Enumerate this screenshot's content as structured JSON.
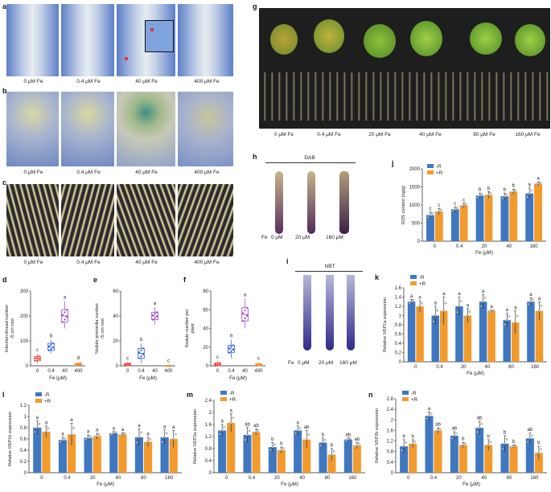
{
  "panels": {
    "a": {
      "label": "a",
      "captions": [
        "0 μM Fe",
        "0.4 μM Fe",
        "40 μM Fe",
        "400 μM Fe"
      ]
    },
    "b": {
      "label": "b",
      "captions": [
        "0 μM Fe",
        "0.4 μM Fe",
        "40 μM Fe",
        "400 μM Fe"
      ]
    },
    "c": {
      "label": "c",
      "captions": [
        "0 μM Fe",
        "0.4 μM Fe",
        "40 μM Fe",
        "400 μM Fe"
      ]
    },
    "g": {
      "label": "g",
      "captions": [
        "0 μM Fe",
        "0.4 μM Fe",
        "20 μM Fe",
        "40 μM Fe",
        "80 μM Fe",
        "160 μM Fe"
      ]
    },
    "h": {
      "label": "h",
      "title": "DAB",
      "fe": "Fe",
      "captions": [
        "0 μM",
        "20 μM",
        "160 μM"
      ]
    },
    "i": {
      "label": "i",
      "title": "NBT",
      "fe": "Fe",
      "captions": [
        "0 μM",
        "20 μM",
        "160 μM"
      ]
    },
    "d": {
      "label": "d"
    },
    "e": {
      "label": "e"
    },
    "f": {
      "label": "f"
    },
    "j": {
      "label": "j"
    },
    "k": {
      "label": "k"
    },
    "l": {
      "label": "l"
    },
    "m": {
      "label": "m"
    },
    "n": {
      "label": "n"
    }
  },
  "colors": {
    "minus_r": "#3f78c1",
    "plus_r": "#f39a2c",
    "box_d": "#9b3fc9",
    "box_d0": "#e8463c",
    "box_d1": "#2a5bd7",
    "box_d3": "#f08a2a"
  },
  "chart_data": [
    {
      "id": "d",
      "type": "box",
      "categories": [
        "0",
        "0.4",
        "40",
        "400"
      ],
      "xlabel": "Fe (μM)",
      "ylabel": "Infection-thread number /5 cm root",
      "ylim": [
        0,
        300
      ],
      "yticks": [
        0,
        100,
        200,
        300
      ],
      "medians": [
        30,
        75,
        200,
        5
      ],
      "q1": [
        20,
        62,
        175,
        2
      ],
      "q3": [
        38,
        90,
        225,
        10
      ],
      "min": [
        10,
        50,
        150,
        0
      ],
      "max": [
        48,
        105,
        260,
        16
      ],
      "letters": [
        "c",
        "b",
        "a",
        "d"
      ]
    },
    {
      "id": "e",
      "type": "box",
      "categories": [
        "0",
        "0.4",
        "40",
        "400"
      ],
      "xlabel": "Fe (μM)",
      "ylabel": "Nodule primordia number /5 cm root",
      "ylim": [
        0,
        60
      ],
      "yticks": [
        0,
        20,
        40,
        60
      ],
      "medians": [
        1,
        10,
        40,
        0
      ],
      "q1": [
        0,
        6,
        37,
        0
      ],
      "q3": [
        2,
        14,
        43,
        0
      ],
      "min": [
        0,
        2,
        33,
        0
      ],
      "max": [
        3,
        18,
        47,
        1
      ],
      "letters": [
        "c",
        "b",
        "a",
        "c"
      ]
    },
    {
      "id": "f",
      "type": "box",
      "categories": [
        "0",
        "0.4",
        "40",
        "400"
      ],
      "xlabel": "Fe (μM)",
      "ylabel": "Nodule number per plant",
      "ylim": [
        0,
        80
      ],
      "yticks": [
        0,
        20,
        40,
        60,
        80
      ],
      "medians": [
        1,
        18,
        55,
        1
      ],
      "q1": [
        0,
        14,
        48,
        0
      ],
      "q3": [
        3,
        22,
        62,
        2
      ],
      "min": [
        0,
        8,
        40,
        0
      ],
      "max": [
        5,
        28,
        72,
        4
      ],
      "letters": [
        "c",
        "b",
        "a",
        "c"
      ]
    },
    {
      "id": "j",
      "type": "bar",
      "categories": [
        "0",
        "0.4",
        "20",
        "40",
        "160"
      ],
      "xlabel": "Fe (μM)",
      "ylabel": "ROS content (ng/g)",
      "ylim": [
        0,
        2000
      ],
      "yticks": [
        0,
        500,
        1000,
        1500,
        2000
      ],
      "series": [
        {
          "name": "-R",
          "values": [
            720,
            880,
            1260,
            1240,
            1320
          ],
          "err": [
            90,
            70,
            70,
            90,
            150
          ]
        },
        {
          "name": "+R",
          "values": [
            820,
            990,
            1280,
            1370,
            1590
          ],
          "err": [
            80,
            60,
            90,
            70,
            50
          ]
        }
      ],
      "letters": [
        [
          "c",
          "c"
        ],
        [
          "c",
          "c"
        ],
        [
          "b",
          "b"
        ],
        [
          "b",
          "b"
        ],
        [
          "a",
          "a"
        ]
      ]
    },
    {
      "id": "k",
      "type": "bar",
      "categories": [
        "0",
        "0.4",
        "20",
        "40",
        "80",
        "160"
      ],
      "xlabel": "Fe (μM)",
      "ylabel": "Relative NSP1a expression",
      "ylim": [
        0,
        1.6
      ],
      "yticks": [
        0,
        0.2,
        0.4,
        0.6,
        0.8,
        1.0,
        1.2,
        1.4,
        1.6
      ],
      "series": [
        {
          "name": "-R",
          "values": [
            1.3,
            1.0,
            1.2,
            1.3,
            0.9,
            1.3
          ],
          "err": [
            0.05,
            0.2,
            0.2,
            0.15,
            0.15,
            0.08
          ]
        },
        {
          "name": "+R",
          "values": [
            1.2,
            1.1,
            1.0,
            1.1,
            0.85,
            1.1
          ],
          "err": [
            0.12,
            0.3,
            0.15,
            0.02,
            0.25,
            0.2
          ]
        }
      ],
      "letters": [
        [
          "a",
          "a"
        ],
        [
          "a",
          "a"
        ],
        [
          "a",
          "a"
        ],
        [
          "a",
          "a"
        ],
        [
          "a",
          "a"
        ],
        [
          "a",
          "a"
        ]
      ]
    },
    {
      "id": "l",
      "type": "bar",
      "categories": [
        "0",
        "0.4",
        "20",
        "40",
        "80",
        "160"
      ],
      "xlabel": "Fe (μM)",
      "ylabel": "Relative NSP1b expression",
      "ylim": [
        0,
        1.2
      ],
      "yticks": [
        0,
        0.2,
        0.4,
        0.6,
        0.8,
        1.0,
        1.2
      ],
      "series": [
        {
          "name": "-R",
          "values": [
            0.8,
            0.58,
            0.62,
            0.7,
            0.63,
            0.63
          ],
          "err": [
            0.12,
            0.05,
            0.05,
            0.03,
            0.15,
            0.13
          ]
        },
        {
          "name": "+R",
          "values": [
            0.73,
            0.68,
            0.65,
            0.68,
            0.55,
            0.6
          ],
          "err": [
            0.1,
            0.2,
            0.05,
            0.03,
            0.08,
            0.15
          ]
        }
      ],
      "letters": [
        [
          "a",
          "a"
        ],
        [
          "a",
          "a"
        ],
        [
          "a",
          "a"
        ],
        [
          "a",
          "a"
        ],
        [
          "a",
          "a"
        ],
        [
          "a",
          "a"
        ]
      ]
    },
    {
      "id": "m",
      "type": "bar",
      "categories": [
        "0",
        "0.4",
        "20",
        "40",
        "80",
        "160"
      ],
      "xlabel": "Fe (μM)",
      "ylabel": "Relative NSP2a expression",
      "ylim": [
        0,
        2.4
      ],
      "yticks": [
        0,
        0.4,
        0.8,
        1.2,
        1.6,
        2.0,
        2.4
      ],
      "series": [
        {
          "name": "-R",
          "values": [
            1.4,
            1.25,
            0.85,
            1.4,
            1.0,
            1.1
          ],
          "err": [
            0.2,
            0.25,
            0.15,
            0.15,
            0.15,
            0.05
          ]
        },
        {
          "name": "+R",
          "values": [
            1.65,
            1.35,
            0.75,
            1.1,
            0.6,
            0.9
          ],
          "err": [
            0.3,
            0.1,
            0.1,
            0.3,
            0.2,
            0.1
          ]
        }
      ],
      "letters": [
        [
          "a",
          "a"
        ],
        [
          "ab",
          "ab"
        ],
        [
          "b",
          "b"
        ],
        [
          "a",
          "ab"
        ],
        [
          "b",
          "b"
        ],
        [
          "ab",
          "ab"
        ]
      ]
    },
    {
      "id": "n",
      "type": "bar",
      "categories": [
        "0",
        "0.4",
        "20",
        "40",
        "80",
        "160"
      ],
      "xlabel": "Fe (μM)",
      "ylabel": "Relative NSP2b expression",
      "ylim": [
        0,
        2.8
      ],
      "yticks": [
        0,
        0.4,
        0.8,
        1.2,
        1.6,
        2.0,
        2.4,
        2.8
      ],
      "series": [
        {
          "name": "-R",
          "values": [
            1.0,
            2.15,
            1.4,
            1.7,
            1.1,
            1.3
          ],
          "err": [
            0.25,
            0.15,
            0.15,
            0.25,
            0.3,
            0.2
          ]
        },
        {
          "name": "+R",
          "values": [
            1.1,
            1.6,
            1.05,
            1.05,
            1.0,
            0.75
          ],
          "err": [
            0.15,
            0.1,
            0.1,
            0.2,
            0.05,
            0.25
          ]
        }
      ],
      "letters": [
        [
          "b",
          "b"
        ],
        [
          "a",
          "ab"
        ],
        [
          "ab",
          "b"
        ],
        [
          "ab",
          "b"
        ],
        [
          "b",
          "b"
        ],
        [
          "ab",
          "b"
        ]
      ]
    }
  ]
}
